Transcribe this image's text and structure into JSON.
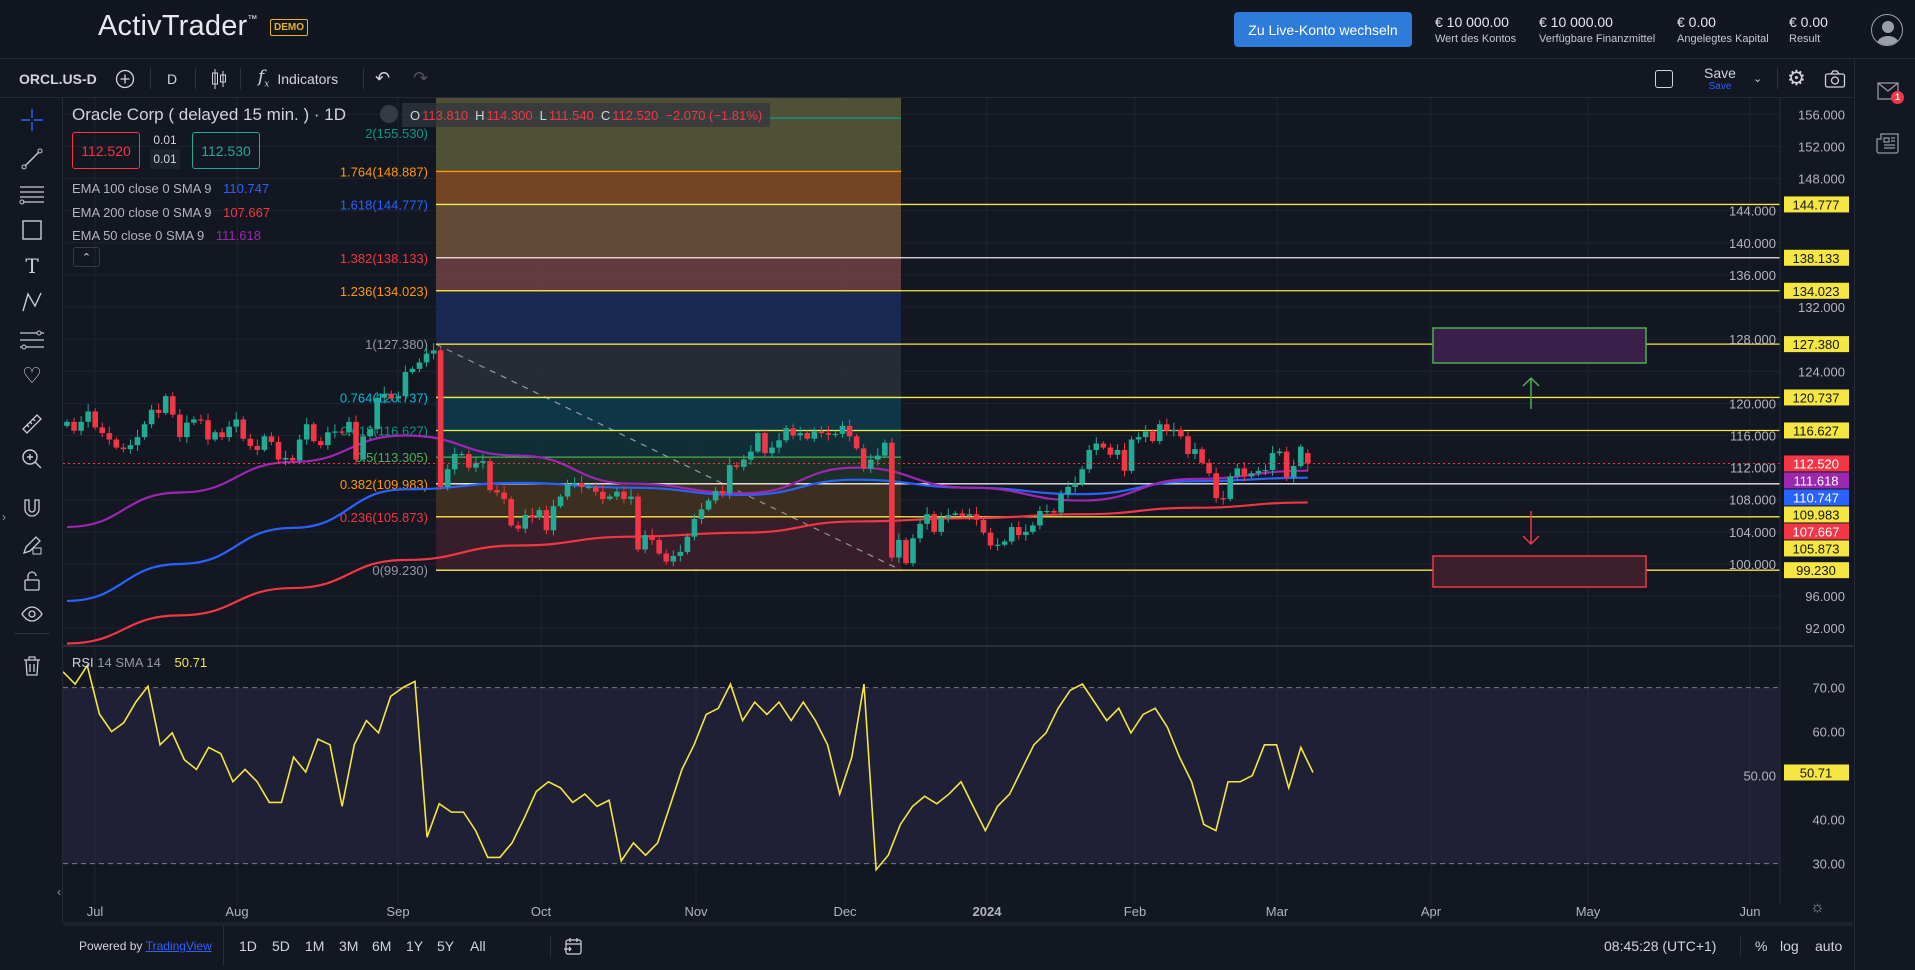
{
  "header": {
    "logo": "ActivTrader",
    "logo_tm": "™",
    "badge": "DEMO",
    "live_button": "Zu Live-Konto wechseln",
    "balances": [
      {
        "value": "€ 10 000.00",
        "label": "Wert des Kontos"
      },
      {
        "value": "€ 10 000.00",
        "label": "Verfügbare Finanzmittel"
      },
      {
        "value": "€ 0.00",
        "label": "Angelegtes Kapital"
      },
      {
        "value": "€ 0.00",
        "label": "Result"
      }
    ]
  },
  "toolbar": {
    "symbol": "ORCL.US-D",
    "interval": "D",
    "indicators": "Indicators",
    "save": "Save",
    "save_sub": "Save"
  },
  "legend": {
    "title": "Oracle Corp ( delayed 15 min. ) · 1D",
    "o_label": "O",
    "o": "113.810",
    "h_label": "H",
    "h": "114.300",
    "l_label": "L",
    "l": "111.540",
    "c_label": "C",
    "c": "112.520",
    "change": "−2.070 (−1.81%)",
    "sell": "112.520",
    "spread_top": "0.01",
    "spread_bottom": "0.01",
    "buy": "112.530",
    "emas": [
      {
        "label": "EMA 100 close 0 SMA 9",
        "value": "110.747",
        "color": "#2962ff"
      },
      {
        "label": "EMA 200 close 0 SMA 9",
        "value": "107.667",
        "color": "#f23645"
      },
      {
        "label": "EMA 50 close 0 SMA 9",
        "value": "111.618",
        "color": "#9c27b0"
      }
    ]
  },
  "rsi_legend": {
    "label": "RSI",
    "params": "14 SMA 14",
    "value": "50.71"
  },
  "chart_data": {
    "type": "candlestick",
    "symbol": "ORCL.US-D",
    "ylim": [
      90,
      158
    ],
    "y_ticks": [
      156,
      152,
      148,
      144,
      140,
      136,
      132,
      128,
      124,
      120,
      116,
      112,
      108,
      104,
      100,
      96,
      92
    ],
    "x_ticks": [
      "Jul",
      "Aug",
      "Sep",
      "Oct",
      "Nov",
      "Dec",
      "2024",
      "Feb",
      "Mar",
      "Apr",
      "May",
      "Jun"
    ],
    "up_color": "#22ab94",
    "down_color": "#f23645",
    "closes": [
      117.7,
      116.6,
      117.7,
      119.0,
      117.0,
      116.3,
      115.5,
      114.5,
      114.3,
      114.8,
      115.8,
      117.4,
      119.2,
      118.8,
      120.9,
      118.6,
      115.8,
      117.6,
      118.0,
      117.9,
      115.5,
      116.4,
      115.8,
      117.1,
      118.0,
      115.6,
      114.7,
      114.2,
      115.9,
      115.2,
      113.0,
      113.2,
      112.9,
      115.5,
      117.4,
      115.3,
      114.8,
      116.4,
      116.5,
      116.4,
      117.7,
      113.0,
      115.9,
      116.8,
      120.7,
      121.2,
      120.6,
      120.9,
      123.9,
      124.3,
      125.1,
      126.2,
      126.6,
      109.6,
      111.8,
      113.7,
      113.7,
      112.0,
      112.6,
      112.8,
      109.2,
      108.9,
      108.1,
      104.8,
      104.4,
      106.1,
      105.8,
      106.7,
      104.2,
      107.2,
      108.4,
      110.0,
      110.1,
      109.6,
      109.6,
      109.0,
      108.1,
      108.4,
      109.0,
      108.1,
      108.4,
      101.8,
      103.6,
      103.0,
      101.3,
      100.3,
      101.0,
      101.5,
      103.4,
      105.6,
      106.8,
      107.9,
      109.1,
      108.8,
      112.3,
      112.1,
      113.0,
      114.0,
      116.3,
      113.8,
      114.5,
      115.4,
      116.9,
      116.0,
      116.3,
      115.6,
      116.5,
      116.3,
      116.1,
      116.2,
      117.2,
      115.9,
      114.4,
      111.9,
      113.0,
      113.5,
      115.1,
      100.8,
      103.0,
      100.1,
      103.2,
      105.0,
      106.2,
      104.0,
      105.8,
      106.1,
      106.3,
      106.0,
      106.2,
      105.5,
      103.9,
      102.3,
      102.4,
      102.8,
      104.6,
      103.6,
      104.0,
      104.8,
      106.6,
      106.6,
      106.4,
      108.7,
      109.6,
      110.0,
      111.8,
      114.2,
      115.0,
      114.5,
      113.6,
      114.2,
      111.6,
      115.5,
      115.8,
      116.5,
      115.3,
      117.4,
      116.6,
      116.7,
      115.9,
      113.7,
      114.3,
      112.6,
      111.3,
      108.2,
      108.1,
      110.9,
      111.9,
      110.9,
      111.3,
      111.6,
      111.7,
      113.8,
      114.0,
      110.8,
      112.2,
      114.6,
      112.52
    ],
    "last_bar": {
      "open": 113.81,
      "high": 114.3,
      "low": 111.54,
      "close": 112.52
    },
    "ema_series": [
      {
        "name": "EMA 100",
        "color": "#2962ff",
        "values": [
          95.4,
          100.0,
          104.5,
          109.3,
          110.1,
          109.5,
          108.6,
          110.5,
          109.5,
          108.7,
          110.3,
          110.747
        ]
      },
      {
        "name": "EMA 200",
        "color": "#f23645",
        "values": [
          90.1,
          93.6,
          97.0,
          100.5,
          102.3,
          103.4,
          103.9,
          105.3,
          105.7,
          106.2,
          107.0,
          107.667
        ]
      },
      {
        "name": "EMA 50",
        "color": "#9c27b0",
        "values": [
          104.6,
          108.9,
          112.7,
          116.0,
          113.5,
          110.0,
          108.8,
          112.0,
          109.5,
          107.9,
          110.6,
          111.618
        ]
      }
    ],
    "fibonacci": {
      "levels": [
        {
          "ratio": "0",
          "price": 99.23,
          "label": "0(99.230)",
          "color": "#9598a1",
          "fill": "#3d1f2c"
        },
        {
          "ratio": "0.236",
          "price": 105.873,
          "label": "0.236(105.873)",
          "color": "#f23645",
          "fill": "#43321f"
        },
        {
          "ratio": "0.382",
          "price": 109.983,
          "label": "0.382(109.983)",
          "color": "#ff9800",
          "fill": "#1f3228"
        },
        {
          "ratio": "0.5",
          "price": 113.305,
          "label": "0.5(113.305)",
          "color": "#4caf50",
          "fill": "#12303a"
        },
        {
          "ratio": "0.618",
          "price": 116.627,
          "label": "0.618(116.627)",
          "color": "#089981",
          "fill": "#0f3a4a"
        },
        {
          "ratio": "0.764",
          "price": 120.737,
          "label": "0.764(120.737)",
          "color": "#00bcd4",
          "fill": "#2a2d38"
        },
        {
          "ratio": "1",
          "price": 127.38,
          "label": "1(127.380)",
          "color": "#9598a1",
          "fill": "#1b2a55"
        },
        {
          "ratio": "1.236",
          "price": 134.023,
          "label": "1.236(134.023)",
          "color": "#ff9800",
          "fill": "#6b3f44"
        },
        {
          "ratio": "1.382",
          "price": 138.133,
          "label": "1.382(138.133)",
          "color": "#f23645",
          "fill": "#6a5038"
        },
        {
          "ratio": "1.618",
          "price": 144.777,
          "label": "1.618(144.777)",
          "color": "#2962ff",
          "fill": "#7f4a22"
        },
        {
          "ratio": "1.764",
          "price": 148.887,
          "label": "1.764(148.887)",
          "color": "#ff9800",
          "fill": "#58573a"
        },
        {
          "ratio": "2",
          "price": 155.53,
          "label": "2(155.530)",
          "color": "#089981",
          "fill": ""
        }
      ]
    },
    "horizontal_lines": [
      {
        "price": 144.777,
        "label": "144.777",
        "color": "#f5e642"
      },
      {
        "price": 138.133,
        "label": "138.133",
        "color": "#e8e8e8"
      },
      {
        "price": 134.023,
        "label": "134.023",
        "color": "#f5e642"
      },
      {
        "price": 127.38,
        "label": "127.380",
        "color": "#f5e642"
      },
      {
        "price": 120.737,
        "label": "120.737",
        "color": "#f5e642"
      },
      {
        "price": 116.627,
        "label": "116.627",
        "color": "#f5e642"
      },
      {
        "price": 109.983,
        "label": "109.983",
        "color": "#e8e8e8"
      },
      {
        "price": 105.873,
        "label": "105.873",
        "color": "#f5e642"
      },
      {
        "price": 99.23,
        "label": "99.230",
        "color": "#f5e642"
      }
    ],
    "price_labels": [
      {
        "price": 112.52,
        "label": "112.520",
        "bg": "#f23645",
        "fg": "#ffffff"
      },
      {
        "price": 111.618,
        "label": "111.618",
        "bg": "#9c27b0",
        "fg": "#ffffff"
      },
      {
        "price": 110.747,
        "label": "110.747",
        "bg": "#2962ff",
        "fg": "#ffffff"
      },
      {
        "price": 107.667,
        "label": "107.667",
        "bg": "#f23645",
        "fg": "#ffffff"
      }
    ],
    "rsi": {
      "ylim": [
        25,
        75
      ],
      "y_ticks": [
        70,
        60,
        50,
        40,
        30
      ],
      "upper": 70,
      "lower": 30,
      "value_label": "50.71",
      "color": "#f5e642",
      "values": [
        73.6,
        70.8,
        75,
        64,
        60,
        62,
        66.7,
        70.3,
        57,
        59.7,
        53.6,
        51.4,
        56.4,
        55,
        48.6,
        51.4,
        48.6,
        43.9,
        43.9,
        54.2,
        50.8,
        58.3,
        57,
        43,
        57,
        62.5,
        59.7,
        68,
        70,
        71.4,
        36,
        43.6,
        41.7,
        41.7,
        37.5,
        31.4,
        31.4,
        34.7,
        40.3,
        46.4,
        48.6,
        47.2,
        43.9,
        45.8,
        43,
        44.4,
        30.6,
        34.7,
        31.9,
        34.7,
        43,
        51.4,
        57,
        63.9,
        65.3,
        70.8,
        62.5,
        66.7,
        63.9,
        66.7,
        62.5,
        66.7,
        62.5,
        57,
        45.8,
        54.2,
        70.8,
        28.6,
        31.9,
        38.9,
        43,
        45.3,
        43.6,
        45.8,
        48.6,
        43,
        37.5,
        43,
        45.8,
        51.4,
        57,
        59.7,
        65.3,
        69.4,
        70.8,
        66.7,
        62.5,
        65.3,
        59.7,
        63.9,
        65.3,
        61,
        54.2,
        48.6,
        38.9,
        37.5,
        48.6,
        48.6,
        50,
        57,
        57,
        47.2,
        56.4,
        50.71
      ]
    }
  },
  "bottom": {
    "powered_by": "Powered by",
    "brand": "TradingView",
    "ranges": [
      "1D",
      "5D",
      "1M",
      "3M",
      "6M",
      "1Y",
      "5Y",
      "All"
    ],
    "time": "08:45:28 (UTC+1)",
    "percent": "%",
    "log": "log",
    "auto": "auto"
  },
  "notifications": {
    "badge": "1"
  }
}
